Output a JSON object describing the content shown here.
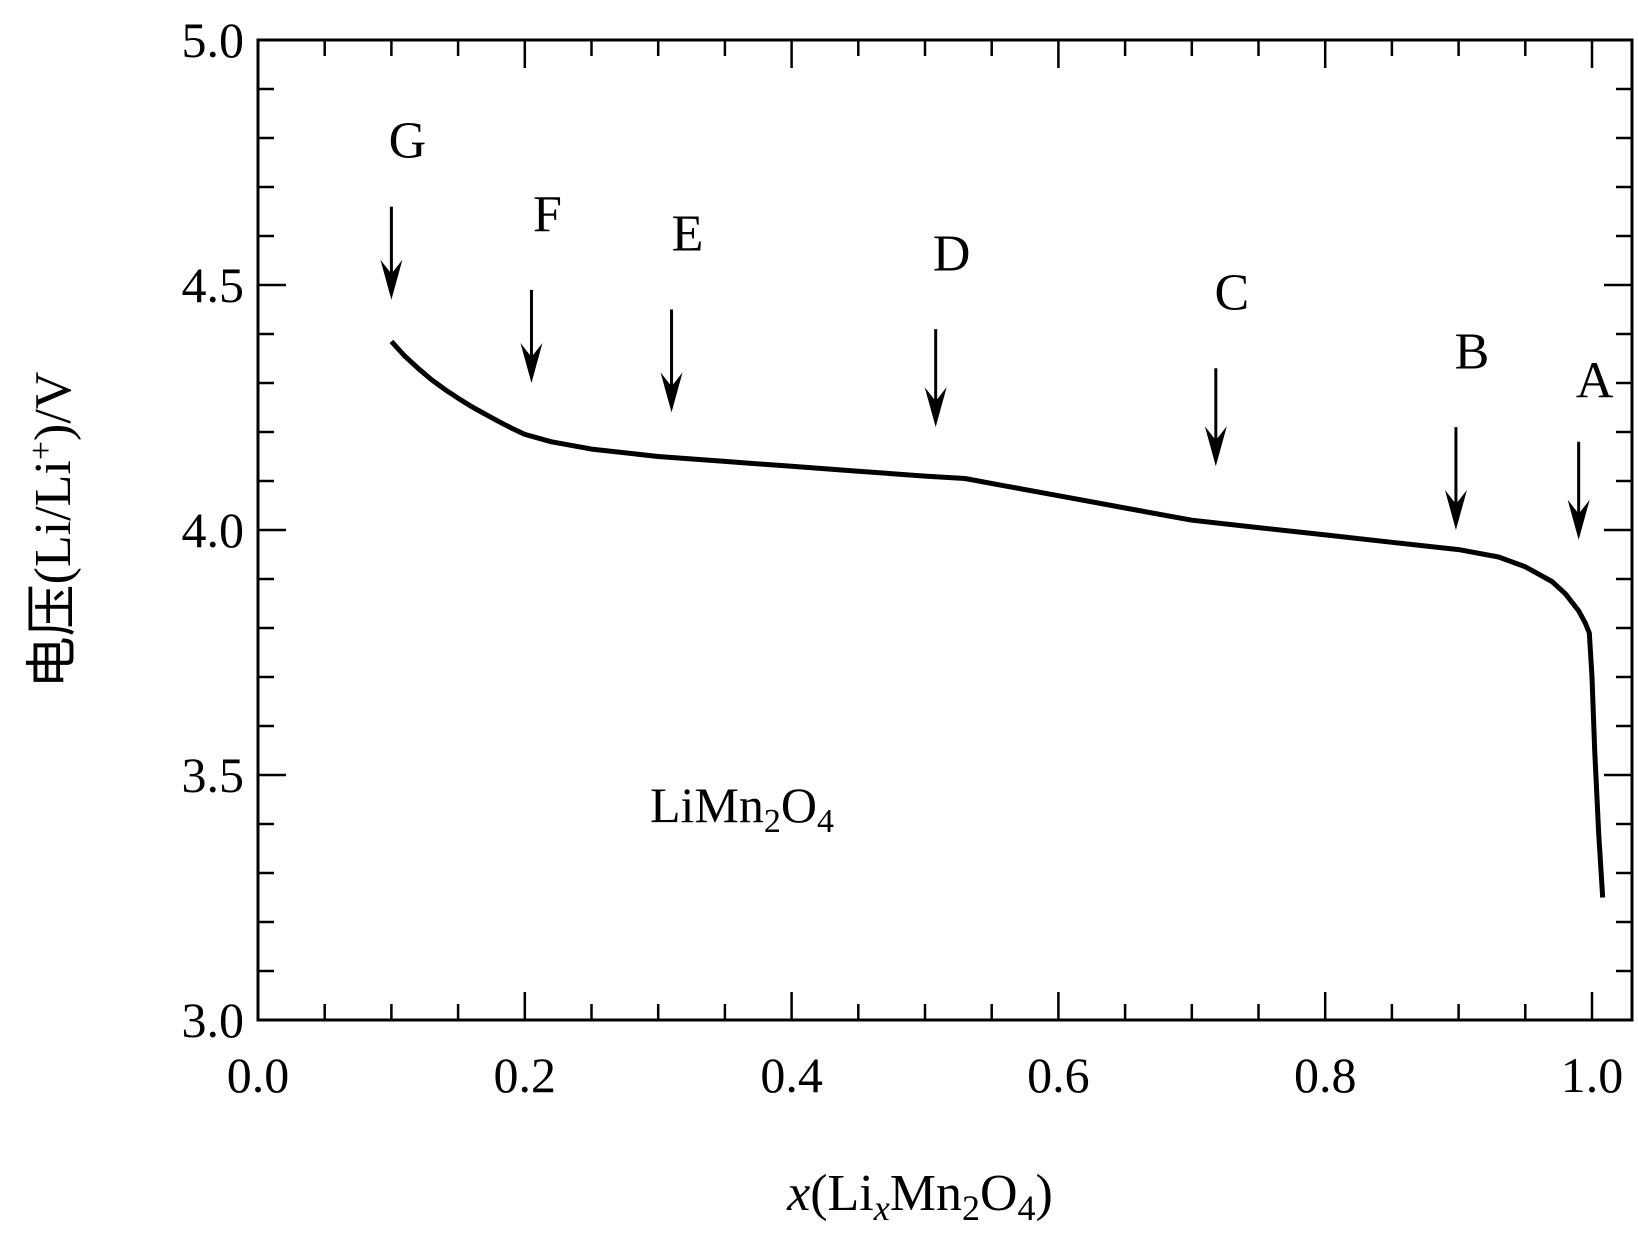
{
  "chart_data": {
    "type": "line",
    "xlabel": {
      "var": "x",
      "open": "(Li",
      "sub1": "x",
      "mid": "Mn",
      "sub2": "2",
      "o": "O",
      "sub3": "4",
      "close": ")"
    },
    "ylabel": {
      "prefix": "电压(Li/Li",
      "sup": "+",
      "suffix": ")/V"
    },
    "xlim": [
      0.0,
      1.0
    ],
    "ylim": [
      3.0,
      5.0
    ],
    "x_ticks": [
      "0.0",
      "0.2",
      "0.4",
      "0.6",
      "0.8",
      "1.0"
    ],
    "y_ticks": [
      "3.0",
      "3.5",
      "4.0",
      "4.5",
      "5.0"
    ],
    "annotation": {
      "base": "LiMn",
      "sub1": "2",
      "mid": "O",
      "sub2": "4"
    },
    "series": [
      {
        "x": [
          0.1,
          0.11,
          0.12,
          0.13,
          0.14,
          0.15,
          0.16,
          0.17,
          0.18,
          0.19,
          0.2,
          0.22,
          0.25,
          0.3,
          0.35,
          0.4,
          0.45,
          0.5,
          0.53,
          0.56,
          0.6,
          0.65,
          0.7,
          0.75,
          0.8,
          0.85,
          0.9,
          0.93,
          0.95,
          0.97,
          0.98,
          0.99,
          0.995,
          0.998,
          1.0,
          1.002,
          1.005,
          1.008
        ],
        "y": [
          4.385,
          4.355,
          4.33,
          4.307,
          4.287,
          4.269,
          4.252,
          4.237,
          4.222,
          4.208,
          4.195,
          4.18,
          4.165,
          4.15,
          4.14,
          4.13,
          4.12,
          4.11,
          4.105,
          4.09,
          4.07,
          4.045,
          4.02,
          4.005,
          3.99,
          3.975,
          3.96,
          3.945,
          3.925,
          3.895,
          3.87,
          3.835,
          3.81,
          3.79,
          3.7,
          3.55,
          3.38,
          3.25
        ]
      }
    ],
    "markers": [
      {
        "label": "A",
        "x": 0.99,
        "text_y": 4.27,
        "arrow_top": 4.18,
        "arrow_tip": 3.98
      },
      {
        "label": "B",
        "x": 0.898,
        "text_y": 4.33,
        "arrow_top": 4.21,
        "arrow_tip": 4.0
      },
      {
        "label": "C",
        "x": 0.718,
        "text_y": 4.45,
        "arrow_top": 4.33,
        "arrow_tip": 4.13
      },
      {
        "label": "D",
        "x": 0.508,
        "text_y": 4.53,
        "arrow_top": 4.41,
        "arrow_tip": 4.21
      },
      {
        "label": "E",
        "x": 0.31,
        "text_y": 4.57,
        "arrow_top": 4.45,
        "arrow_tip": 4.24
      },
      {
        "label": "F",
        "x": 0.205,
        "text_y": 4.61,
        "arrow_top": 4.49,
        "arrow_tip": 4.3
      },
      {
        "label": "G",
        "x": 0.1,
        "text_y": 4.76,
        "arrow_top": 4.66,
        "arrow_tip": 4.47
      }
    ],
    "grid": false,
    "legend": "none"
  }
}
